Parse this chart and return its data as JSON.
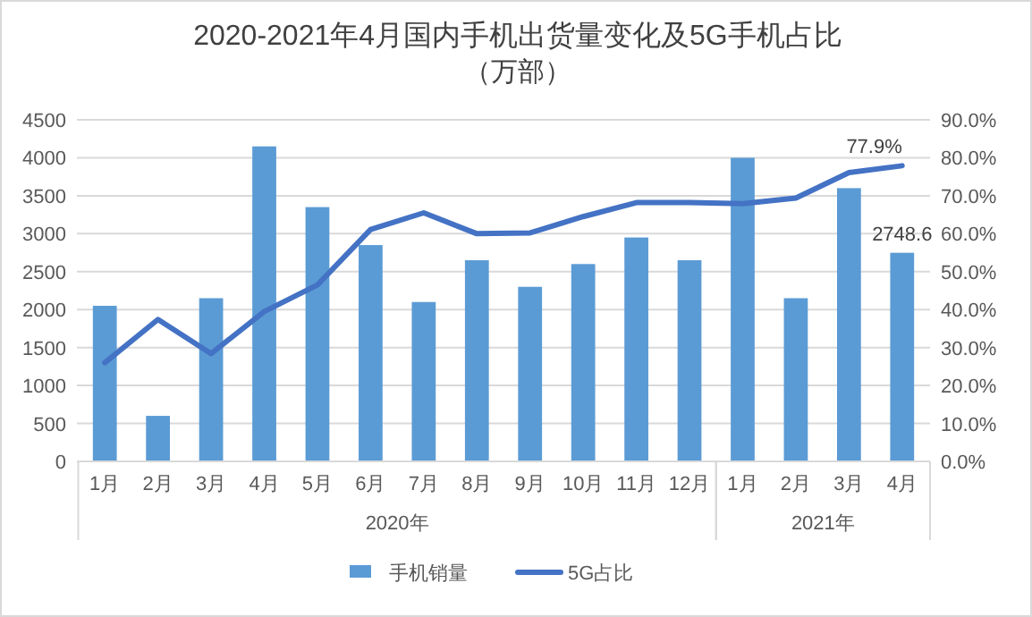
{
  "chart_data": {
    "type": "bar",
    "title": "2020-2021年4月国内手机出货量变化及5G手机占比",
    "subtitle": "（万部）",
    "categories": [
      "1月",
      "2月",
      "3月",
      "4月",
      "5月",
      "6月",
      "7月",
      "8月",
      "9月",
      "10月",
      "11月",
      "12月",
      "1月",
      "2月",
      "3月",
      "4月"
    ],
    "series": [
      {
        "name": "手机销量",
        "color": "#5b9bd5",
        "values": [
          2050,
          600,
          2150,
          4150,
          3350,
          2850,
          2100,
          2650,
          2300,
          2600,
          2950,
          2650,
          4000,
          2150,
          3600,
          2748.6
        ],
        "value_labels": [
          null,
          null,
          null,
          null,
          null,
          null,
          null,
          null,
          null,
          null,
          null,
          null,
          null,
          null,
          null,
          "2748.6"
        ]
      },
      {
        "name": "5G占比",
        "type": "line",
        "axis": "y2",
        "color": "#4472c4",
        "values": [
          26.0,
          37.4,
          28.4,
          39.5,
          46.5,
          61.1,
          65.5,
          60.0,
          60.2,
          64.5,
          68.2,
          68.2,
          67.9,
          69.4,
          76.1,
          77.9
        ],
        "value_labels": [
          null,
          null,
          null,
          null,
          null,
          null,
          null,
          null,
          null,
          null,
          null,
          null,
          null,
          null,
          null,
          "77.9%"
        ]
      }
    ],
    "annotations": [
      "2020年",
      "2021年"
    ],
    "ylim": [
      0,
      4500
    ],
    "yticks": [
      0,
      500,
      1000,
      1500,
      2000,
      2500,
      3000,
      3500,
      4000,
      4500
    ],
    "y2lim": [
      0,
      90
    ],
    "y2ticks": [
      {
        "value": 0,
        "label": "0.0%"
      },
      {
        "value": 10,
        "label": "10.0%"
      },
      {
        "value": 20,
        "label": "20.0%"
      },
      {
        "value": 30,
        "label": "30.0%"
      },
      {
        "value": 40,
        "label": "40.0%"
      },
      {
        "value": 50,
        "label": "50.0%"
      },
      {
        "value": 60,
        "label": "60.0%"
      },
      {
        "value": 70,
        "label": "70.0%"
      },
      {
        "value": 80,
        "label": "80.0%"
      },
      {
        "value": 90,
        "label": "90.0%"
      }
    ],
    "grid": "y",
    "legend": "bottom",
    "marker": "none"
  }
}
